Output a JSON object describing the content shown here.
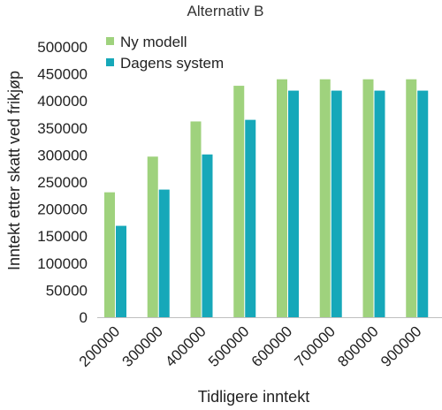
{
  "chart_data": {
    "type": "bar",
    "title": "Alternativ B",
    "xlabel": "Tidligere inntekt",
    "ylabel": "Inntekt etter skatt ved frikjøp",
    "categories": [
      "200000",
      "300000",
      "400000",
      "500000",
      "600000",
      "700000",
      "800000",
      "900000"
    ],
    "yticks": [
      "0",
      "50000",
      "100000",
      "150000",
      "200000",
      "250000",
      "300000",
      "350000",
      "400000",
      "450000",
      "500000"
    ],
    "ylim": [
      0,
      500000
    ],
    "grid": false,
    "legend_position": "top-left",
    "series": [
      {
        "name": "Ny modell",
        "color": "#9fd27d",
        "values": [
          231000,
          297000,
          362000,
          428000,
          440000,
          440000,
          440000,
          440000
        ]
      },
      {
        "name": "Dagens system",
        "color": "#16a8b9",
        "values": [
          169000,
          236000,
          301000,
          365000,
          419000,
          419000,
          419000,
          419000
        ]
      }
    ]
  }
}
